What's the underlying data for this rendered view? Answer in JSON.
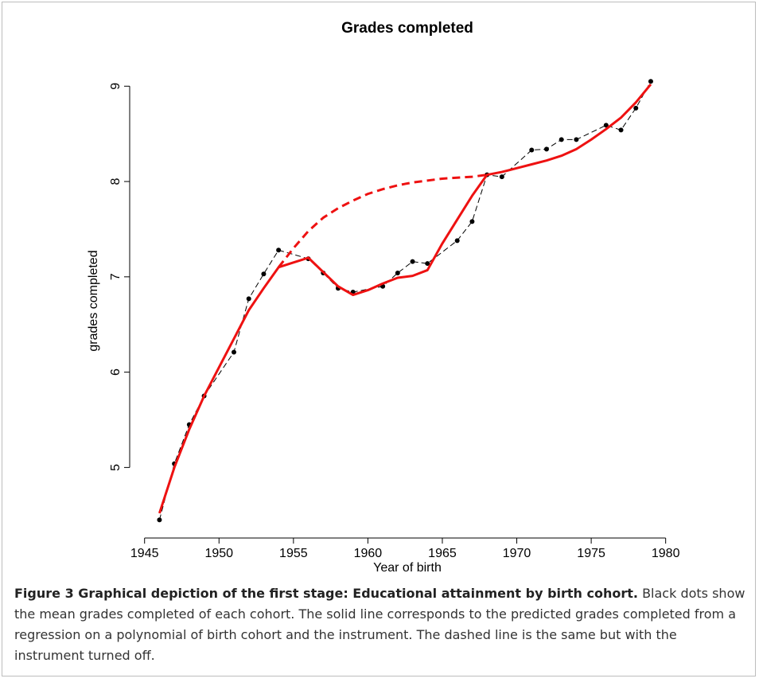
{
  "chart_data": {
    "type": "line",
    "title": "Grades completed",
    "x_label": "Year of birth",
    "y_label": "grades completed",
    "xlim": [
      1944,
      1981.3
    ],
    "ylim": [
      4.26,
      9.47
    ],
    "xticks": [
      1945,
      1950,
      1955,
      1960,
      1965,
      1970,
      1975,
      1980
    ],
    "yticks": [
      5,
      6,
      7,
      8,
      9
    ],
    "grid": false,
    "series": [
      {
        "color": "#000000",
        "line_style": "dashed-thin",
        "marker": "dot",
        "x": [
          1946,
          1947,
          1948,
          1949,
          1951,
          1952,
          1953,
          1954,
          1956,
          1957,
          1958,
          1959,
          1961,
          1962,
          1963,
          1964,
          1966,
          1967,
          1968,
          1969,
          1971,
          1972,
          1973,
          1974,
          1976,
          1977,
          1978,
          1979
        ],
        "values": [
          4.45,
          5.04,
          5.45,
          5.75,
          6.21,
          6.77,
          7.03,
          7.28,
          7.19,
          7.04,
          6.88,
          6.84,
          6.9,
          7.04,
          7.16,
          7.14,
          7.38,
          7.58,
          8.07,
          8.05,
          8.33,
          8.34,
          8.44,
          8.44,
          8.59,
          8.54,
          8.77,
          9.05
        ]
      },
      {
        "color": "#ee1111",
        "line_style": "solid",
        "marker": "none",
        "x": [
          1946,
          1947,
          1948,
          1949,
          1950,
          1951,
          1952,
          1953,
          1954,
          1955,
          1956,
          1957,
          1958,
          1959,
          1960,
          1961,
          1962,
          1963,
          1964,
          1965,
          1966,
          1967,
          1968,
          1969,
          1970,
          1971,
          1972,
          1973,
          1974,
          1975,
          1976,
          1977,
          1978,
          1979
        ],
        "values": [
          4.52,
          5.0,
          5.4,
          5.75,
          6.05,
          6.35,
          6.65,
          6.88,
          7.1,
          7.15,
          7.2,
          7.05,
          6.9,
          6.81,
          6.86,
          6.93,
          6.99,
          7.01,
          7.07,
          7.35,
          7.6,
          7.85,
          8.07,
          8.1,
          8.14,
          8.18,
          8.22,
          8.27,
          8.34,
          8.44,
          8.55,
          8.67,
          8.83,
          9.02
        ]
      },
      {
        "color": "#ee1111",
        "line_style": "dashed",
        "marker": "none",
        "x": [
          1954,
          1955,
          1956,
          1957,
          1958,
          1959,
          1960,
          1961,
          1962,
          1963,
          1964,
          1965,
          1966,
          1967,
          1968
        ],
        "values": [
          7.1,
          7.3,
          7.48,
          7.62,
          7.72,
          7.8,
          7.87,
          7.92,
          7.96,
          7.99,
          8.01,
          8.03,
          8.04,
          8.05,
          8.07
        ]
      }
    ]
  },
  "caption": {
    "label": "Figure 3 Graphical depiction of the first stage: Educational attainment by birth cohort.",
    "text": "Black dots show the mean grades completed of each cohort. The solid line corresponds to the predicted grades completed from a regression on a polynomial of birth cohort and the instrument. The dashed line is the same but with the instrument turned off."
  }
}
